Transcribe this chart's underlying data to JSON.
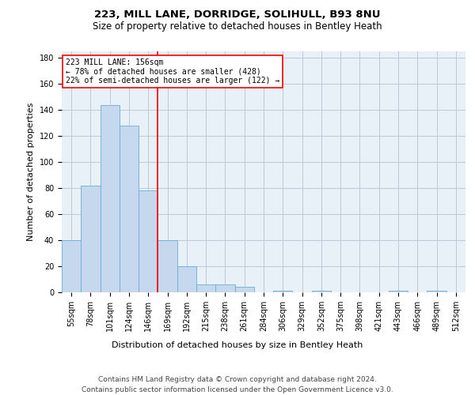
{
  "title": "223, MILL LANE, DORRIDGE, SOLIHULL, B93 8NU",
  "subtitle": "Size of property relative to detached houses in Bentley Heath",
  "xlabel": "Distribution of detached houses by size in Bentley Heath",
  "ylabel": "Number of detached properties",
  "footer_line1": "Contains HM Land Registry data © Crown copyright and database right 2024.",
  "footer_line2": "Contains public sector information licensed under the Open Government Licence v3.0.",
  "bar_labels": [
    "55sqm",
    "78sqm",
    "101sqm",
    "124sqm",
    "146sqm",
    "169sqm",
    "192sqm",
    "215sqm",
    "238sqm",
    "261sqm",
    "284sqm",
    "306sqm",
    "329sqm",
    "352sqm",
    "375sqm",
    "398sqm",
    "421sqm",
    "443sqm",
    "466sqm",
    "489sqm",
    "512sqm"
  ],
  "bar_values": [
    40,
    82,
    144,
    128,
    78,
    40,
    20,
    6,
    6,
    4,
    0,
    1,
    0,
    1,
    0,
    0,
    0,
    1,
    0,
    1,
    0
  ],
  "bar_color": "#c5d8ed",
  "bar_edge_color": "#6aaed6",
  "property_label": "223 MILL LANE: 156sqm",
  "property_line_x": 4.5,
  "annotation_line1": "← 78% of detached houses are smaller (428)",
  "annotation_line2": "22% of semi-detached houses are larger (122) →",
  "annotation_box_color": "white",
  "annotation_box_edge_color": "red",
  "property_line_color": "red",
  "ylim": [
    0,
    185
  ],
  "yticks": [
    0,
    20,
    40,
    60,
    80,
    100,
    120,
    140,
    160,
    180
  ],
  "grid_color": "#c0c8d8",
  "bg_color": "#e8f0f8",
  "title_fontsize": 9.5,
  "subtitle_fontsize": 8.5,
  "ylabel_fontsize": 8,
  "xlabel_fontsize": 8,
  "tick_fontsize": 7,
  "annotation_fontsize": 7,
  "footer_fontsize": 6.5
}
